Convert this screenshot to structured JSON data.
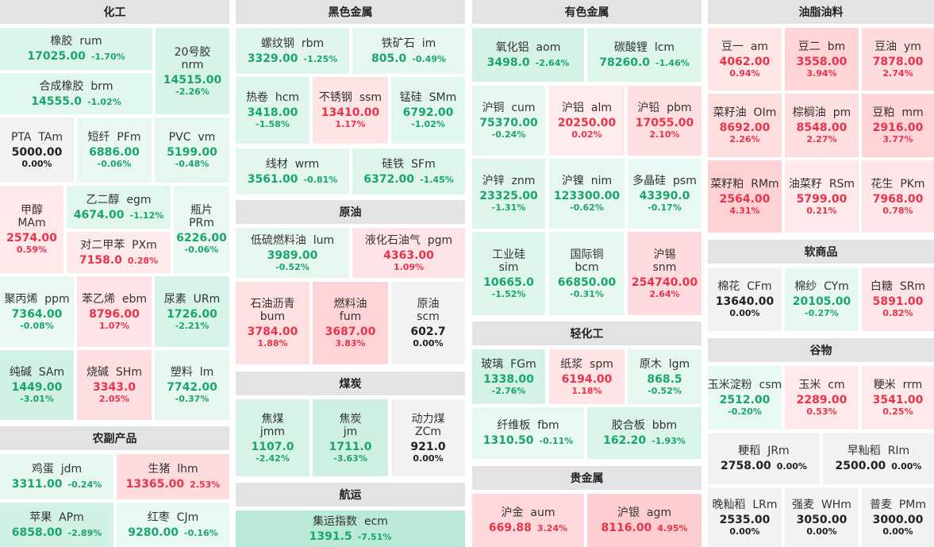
{
  "sections": [
    {
      "id": "chem",
      "title": "化工",
      "items": [
        {
          "id": "rum",
          "name": "橡胶",
          "code": "rum",
          "price": "17025.00",
          "pct": "-1.70%"
        },
        {
          "id": "brm",
          "name": "合成橡胶",
          "code": "brm",
          "price": "14555.0",
          "pct": "-1.02%"
        },
        {
          "id": "nrm",
          "name": "20号胶",
          "code": "nrm",
          "price": "14515.00",
          "pct": "-2.26%"
        },
        {
          "id": "TAm",
          "name": "PTA",
          "code": "TAm",
          "price": "5000.00",
          "pct": "0.00%"
        },
        {
          "id": "PFm",
          "name": "短纤",
          "code": "PFm",
          "price": "6886.00",
          "pct": "-0.06%"
        },
        {
          "id": "vm",
          "name": "PVC",
          "code": "vm",
          "price": "5199.00",
          "pct": "-0.48%"
        },
        {
          "id": "MAm",
          "name": "甲醇",
          "code": "MAm",
          "price": "2574.00",
          "pct": "0.59%"
        },
        {
          "id": "egm",
          "name": "乙二醇",
          "code": "egm",
          "price": "4674.00",
          "pct": "-1.12%"
        },
        {
          "id": "PXm",
          "name": "对二甲苯",
          "code": "PXm",
          "price": "7158.0",
          "pct": "0.28%"
        },
        {
          "id": "PRm",
          "name": "瓶片",
          "code": "PRm",
          "price": "6226.00",
          "pct": "-0.06%"
        },
        {
          "id": "ppm",
          "name": "聚丙烯",
          "code": "ppm",
          "price": "7364.00",
          "pct": "-0.08%"
        },
        {
          "id": "ebm",
          "name": "苯乙烯",
          "code": "ebm",
          "price": "8796.00",
          "pct": "1.07%"
        },
        {
          "id": "URm",
          "name": "尿素",
          "code": "URm",
          "price": "1726.00",
          "pct": "-2.21%"
        },
        {
          "id": "SAm",
          "name": "纯碱",
          "code": "SAm",
          "price": "1449.00",
          "pct": "-3.01%"
        },
        {
          "id": "SHm",
          "name": "烧碱",
          "code": "SHm",
          "price": "3343.0",
          "pct": "2.05%"
        },
        {
          "id": "lm",
          "name": "塑料",
          "code": "lm",
          "price": "7742.00",
          "pct": "-0.37%"
        }
      ]
    },
    {
      "id": "agri",
      "title": "农副产品",
      "items": [
        {
          "id": "jdm",
          "name": "鸡蛋",
          "code": "jdm",
          "price": "3311.00",
          "pct": "-0.24%"
        },
        {
          "id": "lhm",
          "name": "生猪",
          "code": "lhm",
          "price": "13365.00",
          "pct": "2.53%"
        },
        {
          "id": "APm",
          "name": "苹果",
          "code": "APm",
          "price": "6858.00",
          "pct": "-2.89%"
        },
        {
          "id": "CJm",
          "name": "红枣",
          "code": "CJm",
          "price": "9280.00",
          "pct": "-0.16%"
        }
      ]
    },
    {
      "id": "ferrous",
      "title": "黑色金属",
      "items": [
        {
          "id": "rbm",
          "name": "螺纹钢",
          "code": "rbm",
          "price": "3329.00",
          "pct": "-1.25%"
        },
        {
          "id": "im",
          "name": "铁矿石",
          "code": "im",
          "price": "805.0",
          "pct": "-0.49%"
        },
        {
          "id": "hcm",
          "name": "热卷",
          "code": "hcm",
          "price": "3418.00",
          "pct": "-1.58%"
        },
        {
          "id": "ssm",
          "name": "不锈钢",
          "code": "ssm",
          "price": "13410.00",
          "pct": "1.17%"
        },
        {
          "id": "SMm",
          "name": "锰硅",
          "code": "SMm",
          "price": "6792.00",
          "pct": "-1.02%"
        },
        {
          "id": "wrm",
          "name": "线材",
          "code": "wrm",
          "price": "3561.00",
          "pct": "-0.81%"
        },
        {
          "id": "SFm",
          "name": "硅铁",
          "code": "SFm",
          "price": "6372.00",
          "pct": "-1.45%"
        }
      ]
    },
    {
      "id": "crude",
      "title": "原油",
      "items": [
        {
          "id": "lum",
          "name": "低硫燃料油",
          "code": "lum",
          "price": "3989.00",
          "pct": "-0.52%"
        },
        {
          "id": "pgm",
          "name": "液化石油气",
          "code": "pgm",
          "price": "4363.00",
          "pct": "1.09%"
        },
        {
          "id": "bum",
          "name": "石油沥青",
          "code": "bum",
          "price": "3784.00",
          "pct": "1.88%"
        },
        {
          "id": "fum",
          "name": "燃料油",
          "code": "fum",
          "price": "3687.00",
          "pct": "3.83%"
        },
        {
          "id": "scm",
          "name": "原油",
          "code": "scm",
          "price": "602.7",
          "pct": "0.00%"
        }
      ]
    },
    {
      "id": "coal",
      "title": "煤炭",
      "items": [
        {
          "id": "jmm",
          "name": "焦煤",
          "code": "jmm",
          "price": "1107.0",
          "pct": "-2.42%"
        },
        {
          "id": "jm",
          "name": "焦炭",
          "code": "jm",
          "price": "1711.0",
          "pct": "-3.63%"
        },
        {
          "id": "ZCm",
          "name": "动力煤",
          "code": "ZCm",
          "price": "921.0",
          "pct": "0.00%"
        }
      ]
    },
    {
      "id": "ship",
      "title": "航运",
      "items": [
        {
          "id": "ecm",
          "name": "集运指数",
          "code": "ecm",
          "price": "1391.5",
          "pct": "-7.51%"
        }
      ]
    },
    {
      "id": "nonferrous",
      "title": "有色金属",
      "items": [
        {
          "id": "aom",
          "name": "氧化铝",
          "code": "aom",
          "price": "3498.0",
          "pct": "-2.64%"
        },
        {
          "id": "lcm",
          "name": "碳酸锂",
          "code": "lcm",
          "price": "78260.0",
          "pct": "-1.46%"
        },
        {
          "id": "cum",
          "name": "沪铜",
          "code": "cum",
          "price": "75370.00",
          "pct": "-0.24%"
        },
        {
          "id": "alm",
          "name": "沪铝",
          "code": "alm",
          "price": "20250.00",
          "pct": "0.02%"
        },
        {
          "id": "pbm",
          "name": "沪铅",
          "code": "pbm",
          "price": "17055.00",
          "pct": "2.10%"
        },
        {
          "id": "znm",
          "name": "沪锌",
          "code": "znm",
          "price": "23325.00",
          "pct": "-1.31%"
        },
        {
          "id": "nim",
          "name": "沪镍",
          "code": "nim",
          "price": "123300.00",
          "pct": "-0.62%"
        },
        {
          "id": "psm",
          "name": "多晶硅",
          "code": "psm",
          "price": "43390.0",
          "pct": "-0.17%"
        },
        {
          "id": "sim",
          "name": "工业硅",
          "code": "sim",
          "price": "10665.0",
          "pct": "-1.52%"
        },
        {
          "id": "bcm",
          "name": "国际铜",
          "code": "bcm",
          "price": "66850.00",
          "pct": "-0.31%"
        },
        {
          "id": "snm",
          "name": "沪锡",
          "code": "snm",
          "price": "254740.00",
          "pct": "2.64%"
        }
      ]
    },
    {
      "id": "light",
      "title": "轻化工",
      "items": [
        {
          "id": "FGm",
          "name": "玻璃",
          "code": "FGm",
          "price": "1338.00",
          "pct": "-2.76%"
        },
        {
          "id": "spm",
          "name": "纸浆",
          "code": "spm",
          "price": "6194.00",
          "pct": "1.18%"
        },
        {
          "id": "lgm",
          "name": "原木",
          "code": "lgm",
          "price": "868.5",
          "pct": "-0.52%"
        },
        {
          "id": "fbm",
          "name": "纤维板",
          "code": "fbm",
          "price": "1310.50",
          "pct": "-0.11%"
        },
        {
          "id": "bbm",
          "name": "胶合板",
          "code": "bbm",
          "price": "162.20",
          "pct": "-1.93%"
        }
      ]
    },
    {
      "id": "precious",
      "title": "贵金属",
      "items": [
        {
          "id": "aum",
          "name": "沪金",
          "code": "aum",
          "price": "669.88",
          "pct": "3.24%"
        },
        {
          "id": "agm",
          "name": "沪银",
          "code": "agm",
          "price": "8116.00",
          "pct": "4.95%"
        }
      ]
    },
    {
      "id": "oils",
      "title": "油脂油料",
      "items": [
        {
          "id": "am",
          "name": "豆一",
          "code": "am",
          "price": "4062.00",
          "pct": "0.94%"
        },
        {
          "id": "bm",
          "name": "豆二",
          "code": "bm",
          "price": "3558.00",
          "pct": "3.94%"
        },
        {
          "id": "ym",
          "name": "豆油",
          "code": "ym",
          "price": "7878.00",
          "pct": "2.74%"
        },
        {
          "id": "OIm",
          "name": "菜籽油",
          "code": "OIm",
          "price": "8692.00",
          "pct": "2.26%"
        },
        {
          "id": "pm",
          "name": "棕榈油",
          "code": "pm",
          "price": "8548.00",
          "pct": "2.27%"
        },
        {
          "id": "mm",
          "name": "豆粕",
          "code": "mm",
          "price": "2916.00",
          "pct": "3.77%"
        },
        {
          "id": "RMm",
          "name": "菜籽粕",
          "code": "RMm",
          "price": "2564.00",
          "pct": "4.31%"
        },
        {
          "id": "RSm",
          "name": "油菜籽",
          "code": "RSm",
          "price": "5799.00",
          "pct": "0.21%"
        },
        {
          "id": "PKm",
          "name": "花生",
          "code": "PKm",
          "price": "7968.00",
          "pct": "0.78%"
        }
      ]
    },
    {
      "id": "soft",
      "title": "软商品",
      "items": [
        {
          "id": "CFm",
          "name": "棉花",
          "code": "CFm",
          "price": "13640.00",
          "pct": "0.00%"
        },
        {
          "id": "CYm",
          "name": "棉纱",
          "code": "CYm",
          "price": "20105.00",
          "pct": "-0.27%"
        },
        {
          "id": "SRm",
          "name": "白糖",
          "code": "SRm",
          "price": "5891.00",
          "pct": "0.82%"
        }
      ]
    },
    {
      "id": "grain",
      "title": "谷物",
      "items": [
        {
          "id": "csm",
          "name": "玉米淀粉",
          "code": "csm",
          "price": "2512.00",
          "pct": "-0.20%"
        },
        {
          "id": "cm",
          "name": "玉米",
          "code": "cm",
          "price": "2289.00",
          "pct": "0.53%"
        },
        {
          "id": "rrm",
          "name": "粳米",
          "code": "rrm",
          "price": "3541.00",
          "pct": "0.25%"
        },
        {
          "id": "JRm",
          "name": "粳稻",
          "code": "JRm",
          "price": "2758.00",
          "pct": "0.00%"
        },
        {
          "id": "RIm",
          "name": "早籼稻",
          "code": "RIm",
          "price": "2500.00",
          "pct": "0.00%"
        },
        {
          "id": "LRm",
          "name": "晚籼稻",
          "code": "LRm",
          "price": "2535.00",
          "pct": "0.00%"
        },
        {
          "id": "WHm",
          "name": "强麦",
          "code": "WHm",
          "price": "3050.00",
          "pct": "0.00%"
        },
        {
          "id": "PMm",
          "name": "普麦",
          "code": "PMm",
          "price": "3000.00",
          "pct": "0.00%"
        }
      ]
    }
  ],
  "colors": {
    "up_text": "#e8344a",
    "down_text": "#1aa56b",
    "flat_text": "#222222",
    "header_bg": "#e3e3e3",
    "flat_bg": "#f2f2f2"
  },
  "chart_data": {
    "type": "heatmap",
    "value_unit": "%",
    "groups": [
      {
        "name": "化工",
        "tiles": [
          [
            "橡胶 rum",
            17025.0,
            -1.7
          ],
          [
            "合成橡胶 brm",
            14555.0,
            -1.02
          ],
          [
            "20号胶 nrm",
            14515.0,
            -2.26
          ],
          [
            "PTA TAm",
            5000.0,
            0.0
          ],
          [
            "短纤 PFm",
            6886.0,
            -0.06
          ],
          [
            "PVC vm",
            5199.0,
            -0.48
          ],
          [
            "甲醇 MAm",
            2574.0,
            0.59
          ],
          [
            "乙二醇 egm",
            4674.0,
            -1.12
          ],
          [
            "对二甲苯 PXm",
            7158.0,
            0.28
          ],
          [
            "瓶片 PRm",
            6226.0,
            -0.06
          ],
          [
            "聚丙烯 ppm",
            7364.0,
            -0.08
          ],
          [
            "苯乙烯 ebm",
            8796.0,
            1.07
          ],
          [
            "尿素 URm",
            1726.0,
            -2.21
          ],
          [
            "纯碱 SAm",
            1449.0,
            -3.01
          ],
          [
            "烧碱 SHm",
            3343.0,
            2.05
          ],
          [
            "塑料 lm",
            7742.0,
            -0.37
          ]
        ]
      },
      {
        "name": "农副产品",
        "tiles": [
          [
            "鸡蛋 jdm",
            3311.0,
            -0.24
          ],
          [
            "生猪 lhm",
            13365.0,
            2.53
          ],
          [
            "苹果 APm",
            6858.0,
            -2.89
          ],
          [
            "红枣 CJm",
            9280.0,
            -0.16
          ]
        ]
      },
      {
        "name": "黑色金属",
        "tiles": [
          [
            "螺纹钢 rbm",
            3329.0,
            -1.25
          ],
          [
            "铁矿石 im",
            805.0,
            -0.49
          ],
          [
            "热卷 hcm",
            3418.0,
            -1.58
          ],
          [
            "不锈钢 ssm",
            13410.0,
            1.17
          ],
          [
            "锰硅 SMm",
            6792.0,
            -1.02
          ],
          [
            "线材 wrm",
            3561.0,
            -0.81
          ],
          [
            "硅铁 SFm",
            6372.0,
            -1.45
          ]
        ]
      },
      {
        "name": "原油",
        "tiles": [
          [
            "低硫燃料油 lum",
            3989.0,
            -0.52
          ],
          [
            "液化石油气 pgm",
            4363.0,
            1.09
          ],
          [
            "石油沥青 bum",
            3784.0,
            1.88
          ],
          [
            "燃料油 fum",
            3687.0,
            3.83
          ],
          [
            "原油 scm",
            602.7,
            0.0
          ]
        ]
      },
      {
        "name": "煤炭",
        "tiles": [
          [
            "焦煤 jmm",
            1107.0,
            -2.42
          ],
          [
            "焦炭 jm",
            1711.0,
            -3.63
          ],
          [
            "动力煤 ZCm",
            921.0,
            0.0
          ]
        ]
      },
      {
        "name": "航运",
        "tiles": [
          [
            "集运指数 ecm",
            1391.5,
            -7.51
          ]
        ]
      },
      {
        "name": "有色金属",
        "tiles": [
          [
            "氧化铝 aom",
            3498.0,
            -2.64
          ],
          [
            "碳酸锂 lcm",
            78260.0,
            -1.46
          ],
          [
            "沪铜 cum",
            75370.0,
            -0.24
          ],
          [
            "沪铝 alm",
            20250.0,
            0.02
          ],
          [
            "沪铅 pbm",
            17055.0,
            2.1
          ],
          [
            "沪锌 znm",
            23325.0,
            -1.31
          ],
          [
            "沪镍 nim",
            123300.0,
            -0.62
          ],
          [
            "多晶硅 psm",
            43390.0,
            -0.17
          ],
          [
            "工业硅 sim",
            10665.0,
            -1.52
          ],
          [
            "国际铜 bcm",
            66850.0,
            -0.31
          ],
          [
            "沪锡 snm",
            254740.0,
            2.64
          ]
        ]
      },
      {
        "name": "轻化工",
        "tiles": [
          [
            "玻璃 FGm",
            1338.0,
            -2.76
          ],
          [
            "纸浆 spm",
            6194.0,
            1.18
          ],
          [
            "原木 lgm",
            868.5,
            -0.52
          ],
          [
            "纤维板 fbm",
            1310.5,
            -0.11
          ],
          [
            "胶合板 bbm",
            162.2,
            -1.93
          ]
        ]
      },
      {
        "name": "贵金属",
        "tiles": [
          [
            "沪金 aum",
            669.88,
            3.24
          ],
          [
            "沪银 agm",
            8116.0,
            4.95
          ]
        ]
      },
      {
        "name": "油脂油料",
        "tiles": [
          [
            "豆一 am",
            4062.0,
            0.94
          ],
          [
            "豆二 bm",
            3558.0,
            3.94
          ],
          [
            "豆油 ym",
            7878.0,
            2.74
          ],
          [
            "菜籽油 OIm",
            8692.0,
            2.26
          ],
          [
            "棕榈油 pm",
            8548.0,
            2.27
          ],
          [
            "豆粕 mm",
            2916.0,
            3.77
          ],
          [
            "菜籽粕 RMm",
            2564.0,
            4.31
          ],
          [
            "油菜籽 RSm",
            5799.0,
            0.21
          ],
          [
            "花生 PKm",
            7968.0,
            0.78
          ]
        ]
      },
      {
        "name": "软商品",
        "tiles": [
          [
            "棉花 CFm",
            13640.0,
            0.0
          ],
          [
            "棉纱 CYm",
            20105.0,
            -0.27
          ],
          [
            "白糖 SRm",
            5891.0,
            0.82
          ]
        ]
      },
      {
        "name": "谷物",
        "tiles": [
          [
            "玉米淀粉 csm",
            2512.0,
            -0.2
          ],
          [
            "玉米 cm",
            2289.0,
            0.53
          ],
          [
            "粳米 rrm",
            3541.0,
            0.25
          ],
          [
            "粳稻 JRm",
            2758.0,
            0.0
          ],
          [
            "早籼稻 RIm",
            2500.0,
            0.0
          ],
          [
            "晚籼稻 LRm",
            2535.0,
            0.0
          ],
          [
            "强麦 WHm",
            3050.0,
            0.0
          ],
          [
            "普麦 PMm",
            3000.0,
            0.0
          ]
        ]
      }
    ]
  }
}
